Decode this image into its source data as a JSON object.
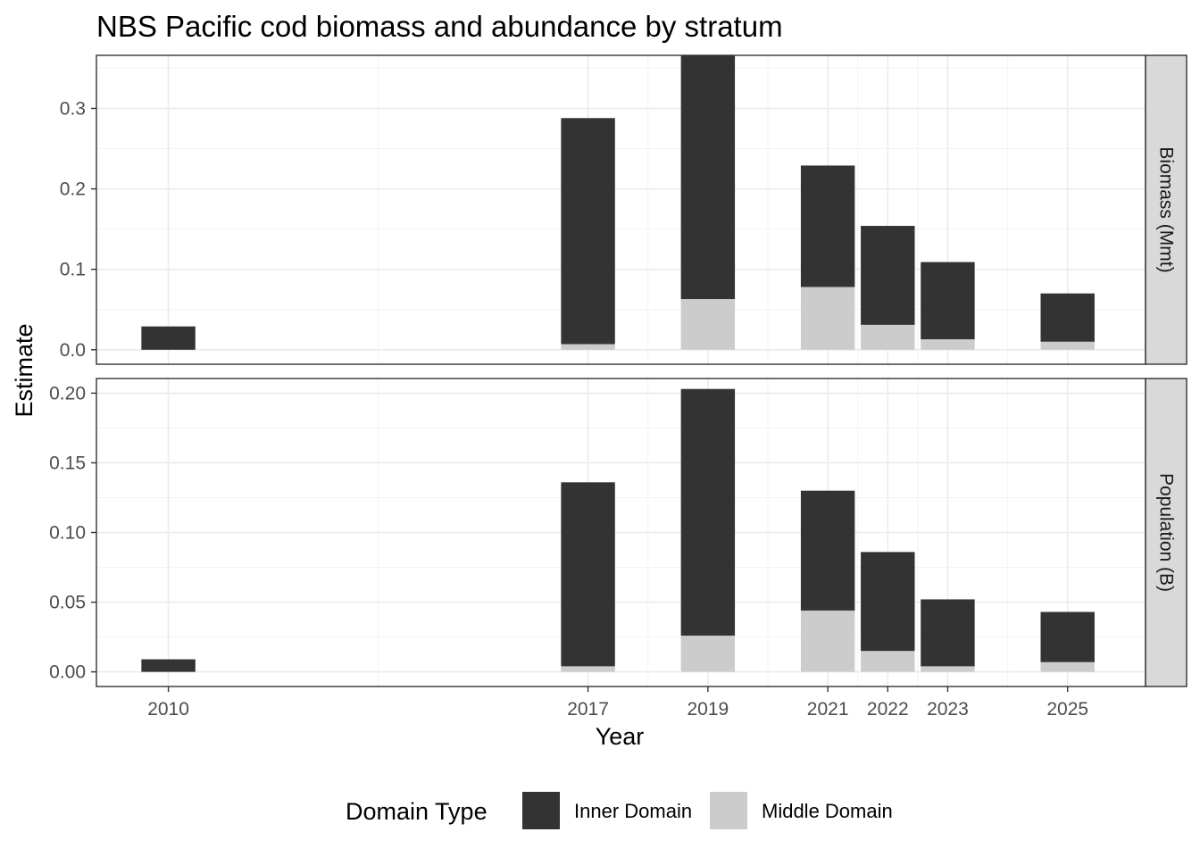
{
  "chart_data": {
    "type": "bar",
    "stacked": true,
    "title": "NBS Pacific cod biomass and abundance by stratum",
    "xlabel": "Year",
    "ylabel": "Estimate",
    "x_ticks": [
      2010,
      2017,
      2019,
      2021,
      2022,
      2023,
      2025
    ],
    "xlim": [
      2008.8,
      2026.3
    ],
    "bar_width": 0.9,
    "grid": true,
    "legend": {
      "title": "Domain Type",
      "position": "bottom",
      "items": [
        {
          "label": "Inner Domain",
          "color": "#333333"
        },
        {
          "label": "Middle Domain",
          "color": "#cccccc"
        }
      ]
    },
    "panels": [
      {
        "label": "Biomass (Mmt)",
        "ylim": [
          -0.018,
          0.366
        ],
        "y_ticks": [
          0.0,
          0.1,
          0.2,
          0.3
        ],
        "y_tick_labels": [
          "0.0",
          "0.1",
          "0.2",
          "0.3"
        ],
        "series": [
          {
            "name": "Middle Domain",
            "x": [
              2010,
              2017,
              2019,
              2021,
              2022,
              2023,
              2025
            ],
            "values": [
              0.0,
              0.007,
              0.063,
              0.078,
              0.031,
              0.013,
              0.01
            ]
          },
          {
            "name": "Inner Domain",
            "x": [
              2010,
              2017,
              2019,
              2021,
              2022,
              2023,
              2025
            ],
            "values": [
              0.029,
              0.281,
              0.303,
              0.151,
              0.123,
              0.096,
              0.06
            ]
          }
        ]
      },
      {
        "label": "Population (B)",
        "ylim": [
          -0.0105,
          0.2105
        ],
        "y_ticks": [
          0.0,
          0.05,
          0.1,
          0.15,
          0.2
        ],
        "y_tick_labels": [
          "0.00",
          "0.05",
          "0.10",
          "0.15",
          "0.20"
        ],
        "series": [
          {
            "name": "Middle Domain",
            "x": [
              2010,
              2017,
              2019,
              2021,
              2022,
              2023,
              2025
            ],
            "values": [
              0.0,
              0.004,
              0.026,
              0.044,
              0.015,
              0.004,
              0.007
            ]
          },
          {
            "name": "Inner Domain",
            "x": [
              2010,
              2017,
              2019,
              2021,
              2022,
              2023,
              2025
            ],
            "values": [
              0.009,
              0.132,
              0.177,
              0.086,
              0.071,
              0.048,
              0.036
            ]
          }
        ]
      }
    ]
  }
}
